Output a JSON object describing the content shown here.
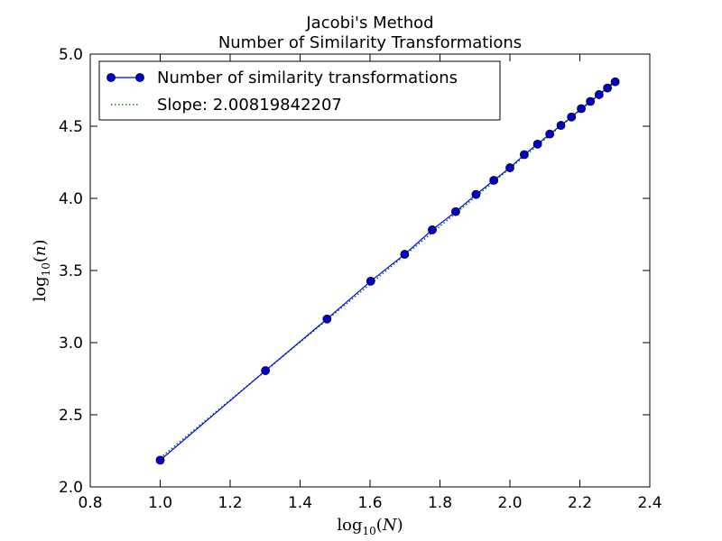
{
  "chart_data": {
    "type": "line",
    "title": "Jacobi's Method",
    "subtitle": "Number of Similarity Transformations",
    "xlabel": "log10(N)",
    "ylabel": "log10(n)",
    "xlim": [
      0.8,
      2.4
    ],
    "ylim": [
      2.0,
      5.0
    ],
    "xticks": [
      0.8,
      1.0,
      1.2,
      1.4,
      1.6,
      1.8,
      2.0,
      2.2,
      2.4
    ],
    "xtick_labels": [
      "0.8",
      "1.0",
      "1.2",
      "1.4",
      "1.6",
      "1.8",
      "2.0",
      "2.2",
      "2.4"
    ],
    "yticks": [
      2.0,
      2.5,
      3.0,
      3.5,
      4.0,
      4.5,
      5.0
    ],
    "ytick_labels": [
      "2.0",
      "2.5",
      "3.0",
      "3.5",
      "4.0",
      "4.5",
      "5.0"
    ],
    "grid": false,
    "legend_position": "top-left",
    "series": [
      {
        "name": "Number of similarity transformations",
        "style": "line-with-markers",
        "color": "#0000ff",
        "marker_color": "#0000cc",
        "x": [
          1.0,
          1.301,
          1.477,
          1.602,
          1.699,
          1.778,
          1.845,
          1.903,
          1.954,
          2.0,
          2.041,
          2.079,
          2.114,
          2.146,
          2.176,
          2.204,
          2.23,
          2.255,
          2.279,
          2.301
        ],
        "y": [
          2.185,
          2.806,
          3.164,
          3.426,
          3.612,
          3.782,
          3.908,
          4.027,
          4.125,
          4.212,
          4.303,
          4.376,
          4.446,
          4.506,
          4.564,
          4.622,
          4.672,
          4.719,
          4.765,
          4.808
        ]
      },
      {
        "name": "Slope: 2.00819842207",
        "style": "dotted",
        "color": "#008000",
        "slope": 2.00819842207,
        "x": [
          1.0,
          2.301
        ],
        "y": [
          2.2,
          4.813
        ]
      }
    ]
  }
}
